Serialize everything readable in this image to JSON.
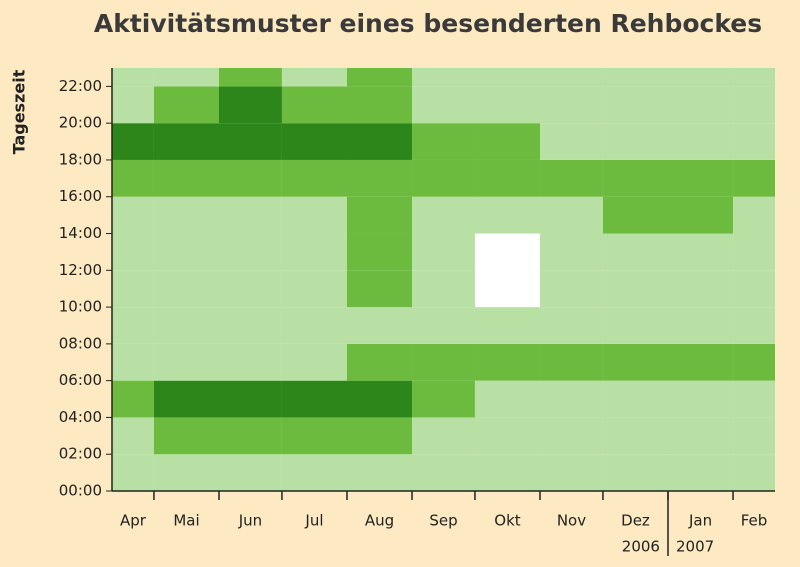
{
  "chart_data": {
    "type": "heatmap",
    "title": "Aktivitätsmuster eines besenderten Rehbockes",
    "ylabel": "Tageszeit",
    "categories": [
      "Apr",
      "Mai",
      "Jun",
      "Jul",
      "Aug",
      "Sep",
      "Okt",
      "Nov",
      "Dez",
      "Jan",
      "Feb"
    ],
    "xlim": [
      10,
      326
    ],
    "xticks": [
      30,
      61,
      91,
      122,
      153,
      183,
      214,
      244,
      275,
      306
    ],
    "year_break": 275,
    "year_labels": [
      "2006",
      "2007"
    ],
    "ylim": [
      0,
      23
    ],
    "yticks": [
      {
        "value": 0,
        "label": "00:00"
      },
      {
        "value": 2,
        "label": "02:00"
      },
      {
        "value": 4,
        "label": "04:00"
      },
      {
        "value": 6,
        "label": "06:00"
      },
      {
        "value": 8,
        "label": "08:00"
      },
      {
        "value": 10,
        "label": "10:00"
      },
      {
        "value": 12,
        "label": "12:00"
      },
      {
        "value": 14,
        "label": "14:00"
      },
      {
        "value": 16,
        "label": "16:00"
      },
      {
        "value": 18,
        "label": "18:00"
      },
      {
        "value": 20,
        "label": "20:00"
      },
      {
        "value": 22,
        "label": "22:00"
      }
    ],
    "row_starts": [
      0,
      2,
      4,
      6,
      8,
      10,
      12,
      14,
      16,
      18,
      20,
      22
    ],
    "z": [
      [
        1,
        1,
        1,
        1,
        1,
        1,
        1,
        1,
        1,
        1,
        1
      ],
      [
        1,
        2,
        2,
        2,
        2,
        1,
        1,
        1,
        1,
        1,
        1
      ],
      [
        2,
        3,
        3,
        3,
        3,
        2,
        1,
        1,
        1,
        1,
        1
      ],
      [
        1,
        1,
        1,
        1,
        2,
        2,
        2,
        2,
        2,
        2,
        2
      ],
      [
        1,
        1,
        1,
        1,
        1,
        1,
        1,
        1,
        1,
        1,
        1
      ],
      [
        1,
        1,
        1,
        1,
        2,
        1,
        0,
        1,
        1,
        1,
        1
      ],
      [
        1,
        1,
        1,
        1,
        2,
        1,
        0,
        1,
        1,
        1,
        1
      ],
      [
        1,
        1,
        1,
        1,
        2,
        1,
        1,
        1,
        2,
        2,
        1
      ],
      [
        2,
        2,
        2,
        2,
        2,
        2,
        2,
        2,
        2,
        2,
        2
      ],
      [
        3,
        3,
        3,
        3,
        3,
        2,
        2,
        1,
        1,
        1,
        1
      ],
      [
        1,
        2,
        3,
        2,
        2,
        1,
        1,
        1,
        1,
        1,
        1
      ],
      [
        1,
        1,
        2,
        1,
        2,
        1,
        1,
        1,
        1,
        1,
        1
      ]
    ],
    "colors": [
      "#ffffff",
      "#b9e0a4",
      "#6dbb3e",
      "#2c861a"
    ]
  }
}
